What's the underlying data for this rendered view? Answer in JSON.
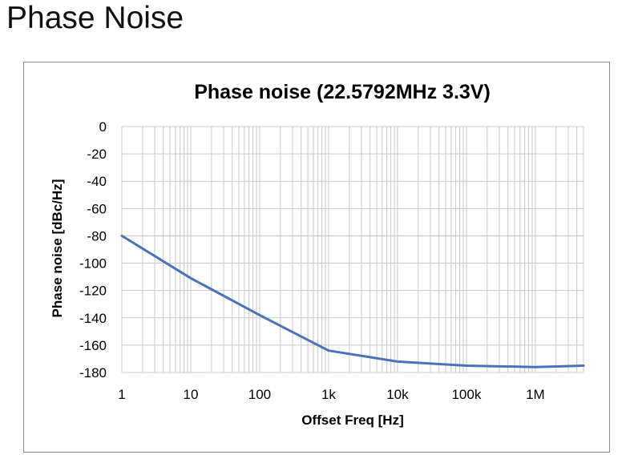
{
  "page": {
    "heading": "Phase Noise"
  },
  "chart_data": {
    "type": "line",
    "title": "Phase noise (22.5792MHz 3.3V)",
    "xlabel": "Offset Freq [Hz]",
    "ylabel": "Phase noise [dBc/Hz]",
    "xscale": "log",
    "xlim": [
      1,
      5000000
    ],
    "ylim": [
      -180,
      0
    ],
    "yticks": [
      0,
      -20,
      -40,
      -60,
      -80,
      -100,
      -120,
      -140,
      -160,
      -180
    ],
    "ytick_labels": [
      "0",
      "-20",
      "-40",
      "-60",
      "-80",
      "-100",
      "-120",
      "-140",
      "-160",
      "-180"
    ],
    "xticks": [
      1,
      10,
      100,
      1000,
      10000,
      100000,
      1000000
    ],
    "xtick_labels": [
      "1",
      "10",
      "100",
      "1k",
      "10k",
      "100k",
      "1M"
    ],
    "grid": true,
    "legend": "none",
    "line_color": "#4a72b8",
    "series": [
      {
        "x": [
          1,
          10,
          100,
          1000,
          10000,
          100000,
          1000000,
          5000000
        ],
        "y": [
          -80,
          -111,
          -138,
          -164,
          -172,
          -175,
          -176,
          -175
        ]
      }
    ]
  }
}
